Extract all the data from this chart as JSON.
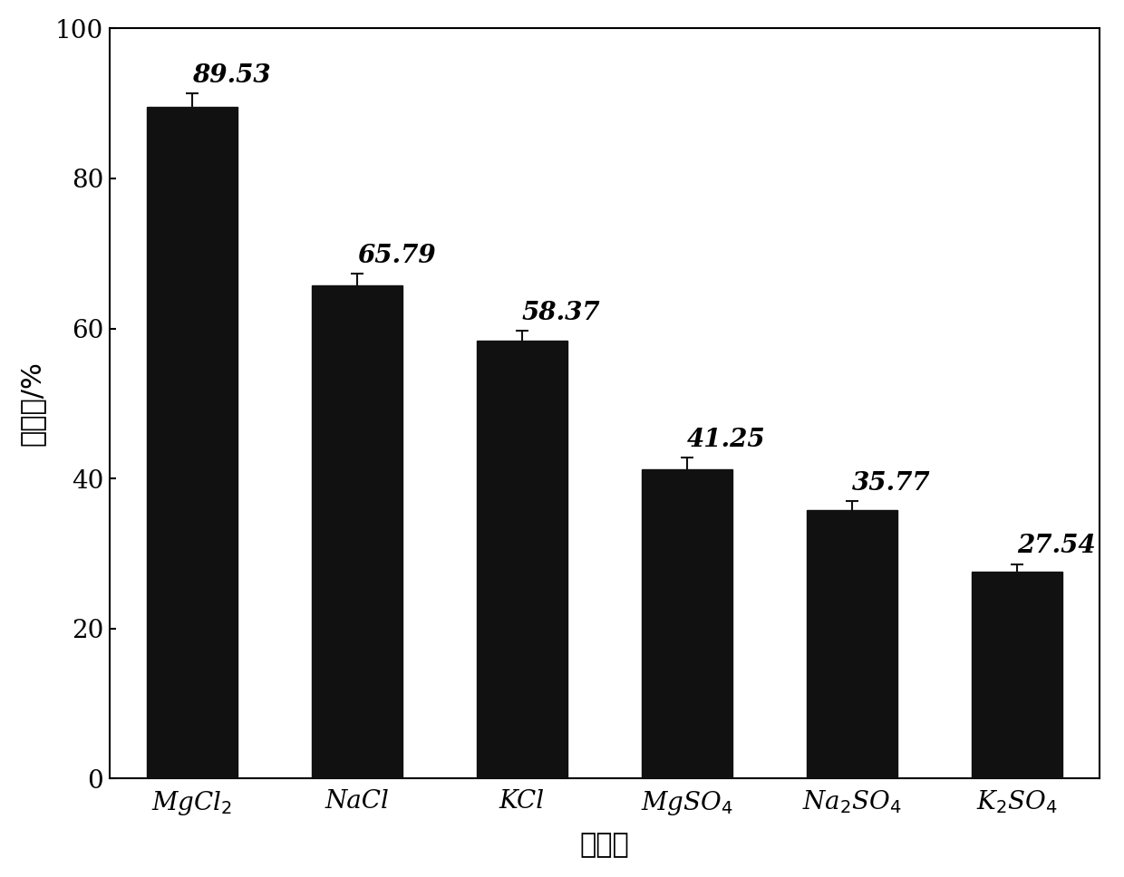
{
  "values": [
    89.53,
    65.79,
    58.37,
    41.25,
    35.77,
    27.54
  ],
  "errors": [
    1.8,
    1.5,
    1.3,
    1.5,
    1.2,
    1.0
  ],
  "bar_color": "#111111",
  "bar_edgecolor": "#111111",
  "bar_width": 0.55,
  "ylabel": "截留率/%",
  "xlabel": "无机盐",
  "ylim": [
    0,
    100
  ],
  "yticks": [
    0,
    20,
    40,
    60,
    80,
    100
  ],
  "ylabel_fontsize": 22,
  "xlabel_fontsize": 22,
  "tick_fontsize": 20,
  "value_fontsize": 20,
  "error_capsize": 5,
  "error_linewidth": 1.5,
  "error_color": "#111111",
  "background_color": "#ffffff"
}
